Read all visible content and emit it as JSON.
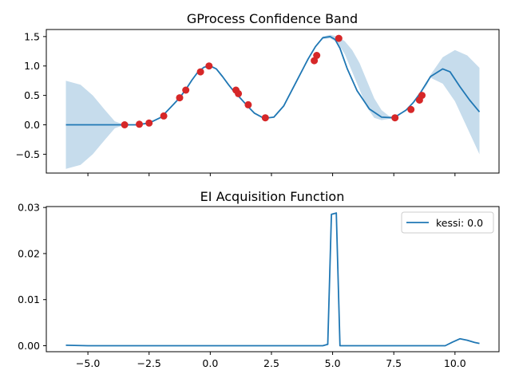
{
  "chart_data": [
    {
      "type": "line",
      "title": "GProcess Confidence Band",
      "xlim": [
        -6.7,
        11.8
      ],
      "ylim": [
        -0.82,
        1.62
      ],
      "yticks": [
        -0.5,
        0.0,
        0.5,
        1.0,
        1.5
      ],
      "ytick_labels": [
        "−0.5",
        "0.0",
        "0.5",
        "1.0",
        "1.5"
      ],
      "xticks": [
        -5.0,
        -2.5,
        0.0,
        2.5,
        5.0,
        7.5,
        10.0
      ],
      "show_xtick_labels": false,
      "grid": false,
      "colors": {
        "mean": "#1f77b4",
        "band": "#c6dcec",
        "points": "#d62728"
      },
      "series": [
        {
          "role": "mean",
          "x": [
            -5.9,
            -5.0,
            -4.5,
            -4.0,
            -3.5,
            -3.0,
            -2.5,
            -2.0,
            -1.5,
            -1.25,
            -1.0,
            -0.75,
            -0.5,
            -0.25,
            0.0,
            0.25,
            0.5,
            0.75,
            1.0,
            1.15,
            1.5,
            1.8,
            2.2,
            2.6,
            3.0,
            3.5,
            4.0,
            4.3,
            4.6,
            4.9,
            5.1,
            5.3,
            5.6,
            6.0,
            6.5,
            7.0,
            7.5,
            8.0,
            8.3,
            8.6,
            9.0,
            9.5,
            9.8,
            10.2,
            10.6,
            11.0
          ],
          "y": [
            0.0,
            0.0,
            0.0,
            0.0,
            0.0,
            0.0,
            0.03,
            0.13,
            0.35,
            0.46,
            0.6,
            0.76,
            0.9,
            0.98,
            1.0,
            0.95,
            0.82,
            0.68,
            0.55,
            0.49,
            0.33,
            0.2,
            0.11,
            0.13,
            0.32,
            0.72,
            1.12,
            1.33,
            1.48,
            1.5,
            1.45,
            1.3,
            0.95,
            0.58,
            0.27,
            0.13,
            0.12,
            0.25,
            0.38,
            0.55,
            0.82,
            0.95,
            0.9,
            0.65,
            0.42,
            0.22
          ]
        },
        {
          "role": "band",
          "x": [
            -5.9,
            -5.3,
            -4.8,
            -4.3,
            -3.9,
            -3.5,
            -3.0,
            -2.5,
            -2.0,
            -1.5,
            -1.0,
            -0.5,
            0.0,
            0.5,
            1.0,
            1.5,
            2.2,
            3.0,
            4.0,
            4.3,
            4.6,
            4.9,
            5.2,
            5.5,
            5.8,
            6.1,
            6.4,
            6.7,
            7.0,
            7.3,
            7.6,
            8.0,
            8.4,
            8.7,
            9.0,
            9.5,
            10.0,
            10.5,
            11.0
          ],
          "upper": [
            0.75,
            0.68,
            0.5,
            0.25,
            0.06,
            0.0,
            0.0,
            0.03,
            0.13,
            0.35,
            0.6,
            0.9,
            1.0,
            0.82,
            0.55,
            0.33,
            0.11,
            0.32,
            1.12,
            1.33,
            1.5,
            1.53,
            1.5,
            1.42,
            1.27,
            1.05,
            0.75,
            0.45,
            0.25,
            0.15,
            0.12,
            0.25,
            0.45,
            0.55,
            0.85,
            1.15,
            1.27,
            1.18,
            0.97
          ],
          "lower": [
            -0.75,
            -0.68,
            -0.5,
            -0.25,
            -0.06,
            0.0,
            0.0,
            0.03,
            0.13,
            0.35,
            0.6,
            0.9,
            1.0,
            0.82,
            0.55,
            0.33,
            0.11,
            0.32,
            1.12,
            1.33,
            1.46,
            1.47,
            1.4,
            1.2,
            0.9,
            0.6,
            0.3,
            0.12,
            0.08,
            0.1,
            0.12,
            0.25,
            0.41,
            0.55,
            0.8,
            0.7,
            0.4,
            -0.05,
            -0.5
          ]
        },
        {
          "role": "observations",
          "x": [
            -3.5,
            -2.9,
            -2.5,
            -1.9,
            -1.25,
            -1.0,
            -0.4,
            -0.05,
            1.05,
            1.15,
            1.55,
            2.25,
            4.25,
            4.35,
            5.25,
            7.55,
            8.2,
            8.55,
            8.65
          ],
          "y": [
            0.0,
            0.01,
            0.03,
            0.15,
            0.46,
            0.59,
            0.9,
            1.0,
            0.59,
            0.53,
            0.34,
            0.12,
            1.09,
            1.18,
            1.47,
            0.12,
            0.26,
            0.42,
            0.5
          ]
        }
      ]
    },
    {
      "type": "line",
      "title": "EI Acquisition Function",
      "xlim": [
        -6.7,
        11.8
      ],
      "ylim": [
        -0.0013,
        0.0302
      ],
      "yticks": [
        0.0,
        0.01,
        0.02,
        0.03
      ],
      "ytick_labels": [
        "0.00",
        "0.01",
        "0.02",
        "0.03"
      ],
      "xticks": [
        -5.0,
        -2.5,
        0.0,
        2.5,
        5.0,
        7.5,
        10.0
      ],
      "xtick_labels": [
        "−5.0",
        "−2.5",
        "0.0",
        "2.5",
        "5.0",
        "7.5",
        "10.0"
      ],
      "grid": false,
      "legend_position": "top-right",
      "series": [
        {
          "name": "kessi: 0.0",
          "color": "#1f77b4",
          "x": [
            -5.9,
            -5.0,
            -3.0,
            0.0,
            3.0,
            4.6,
            4.8,
            4.95,
            5.15,
            5.3,
            5.5,
            7.0,
            9.0,
            9.6,
            9.9,
            10.2,
            10.5,
            10.8,
            11.0
          ],
          "y": [
            0.0001,
            0.0,
            0.0,
            0.0,
            0.0,
            0.0,
            0.0003,
            0.0285,
            0.0288,
            0.0,
            0.0,
            0.0,
            0.0,
            0.0,
            0.0008,
            0.0015,
            0.0012,
            0.0007,
            0.0005
          ]
        }
      ]
    }
  ]
}
